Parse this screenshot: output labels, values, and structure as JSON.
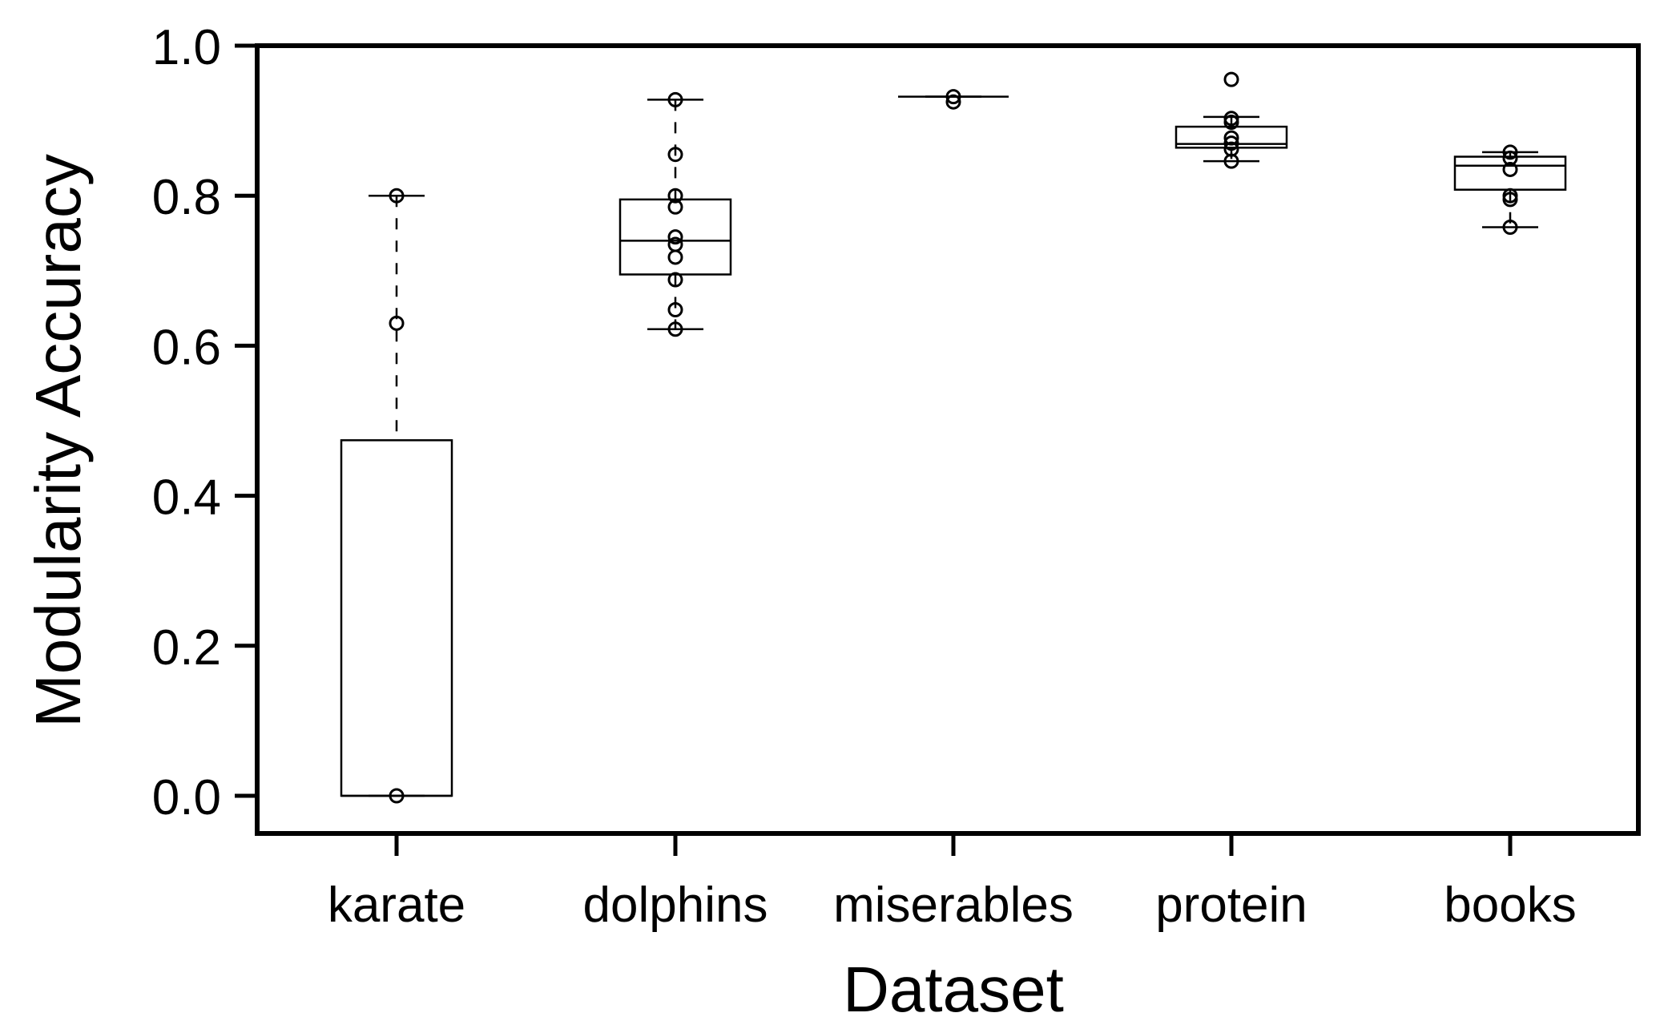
{
  "chart_data": {
    "type": "box",
    "xlabel": "Dataset",
    "ylabel": "Modularity Accuracy",
    "ylim": [
      -0.047,
      1.0
    ],
    "yticks": [
      "0.0",
      "0.2",
      "0.4",
      "0.6",
      "0.8",
      "1.0"
    ],
    "categories": [
      "karate",
      "dolphins",
      "miserables",
      "protein",
      "books"
    ],
    "boxes": [
      {
        "name": "karate",
        "q1": 0.0,
        "median": 0.0,
        "q3": 0.474,
        "whisker_low": 0.0,
        "whisker_high": 0.8,
        "points": [
          0.8,
          0.63,
          0.0
        ]
      },
      {
        "name": "dolphins",
        "q1": 0.695,
        "median": 0.74,
        "q3": 0.795,
        "whisker_low": 0.622,
        "whisker_high": 0.928,
        "points": [
          0.928,
          0.855,
          0.8,
          0.785,
          0.745,
          0.735,
          0.718,
          0.688,
          0.648,
          0.622
        ]
      },
      {
        "name": "miserables",
        "q1": 0.932,
        "median": 0.932,
        "q3": 0.932,
        "whisker_low": 0.932,
        "whisker_high": 0.932,
        "points": [
          0.932,
          0.925
        ]
      },
      {
        "name": "protein",
        "q1": 0.864,
        "median": 0.869,
        "q3": 0.892,
        "whisker_low": 0.846,
        "whisker_high": 0.905,
        "points": [
          0.955,
          0.903,
          0.898,
          0.877,
          0.87,
          0.862,
          0.846
        ]
      },
      {
        "name": "books",
        "q1": 0.808,
        "median": 0.84,
        "q3": 0.852,
        "whisker_low": 0.758,
        "whisker_high": 0.858,
        "points": [
          0.858,
          0.85,
          0.835,
          0.8,
          0.795,
          0.758
        ]
      }
    ]
  }
}
